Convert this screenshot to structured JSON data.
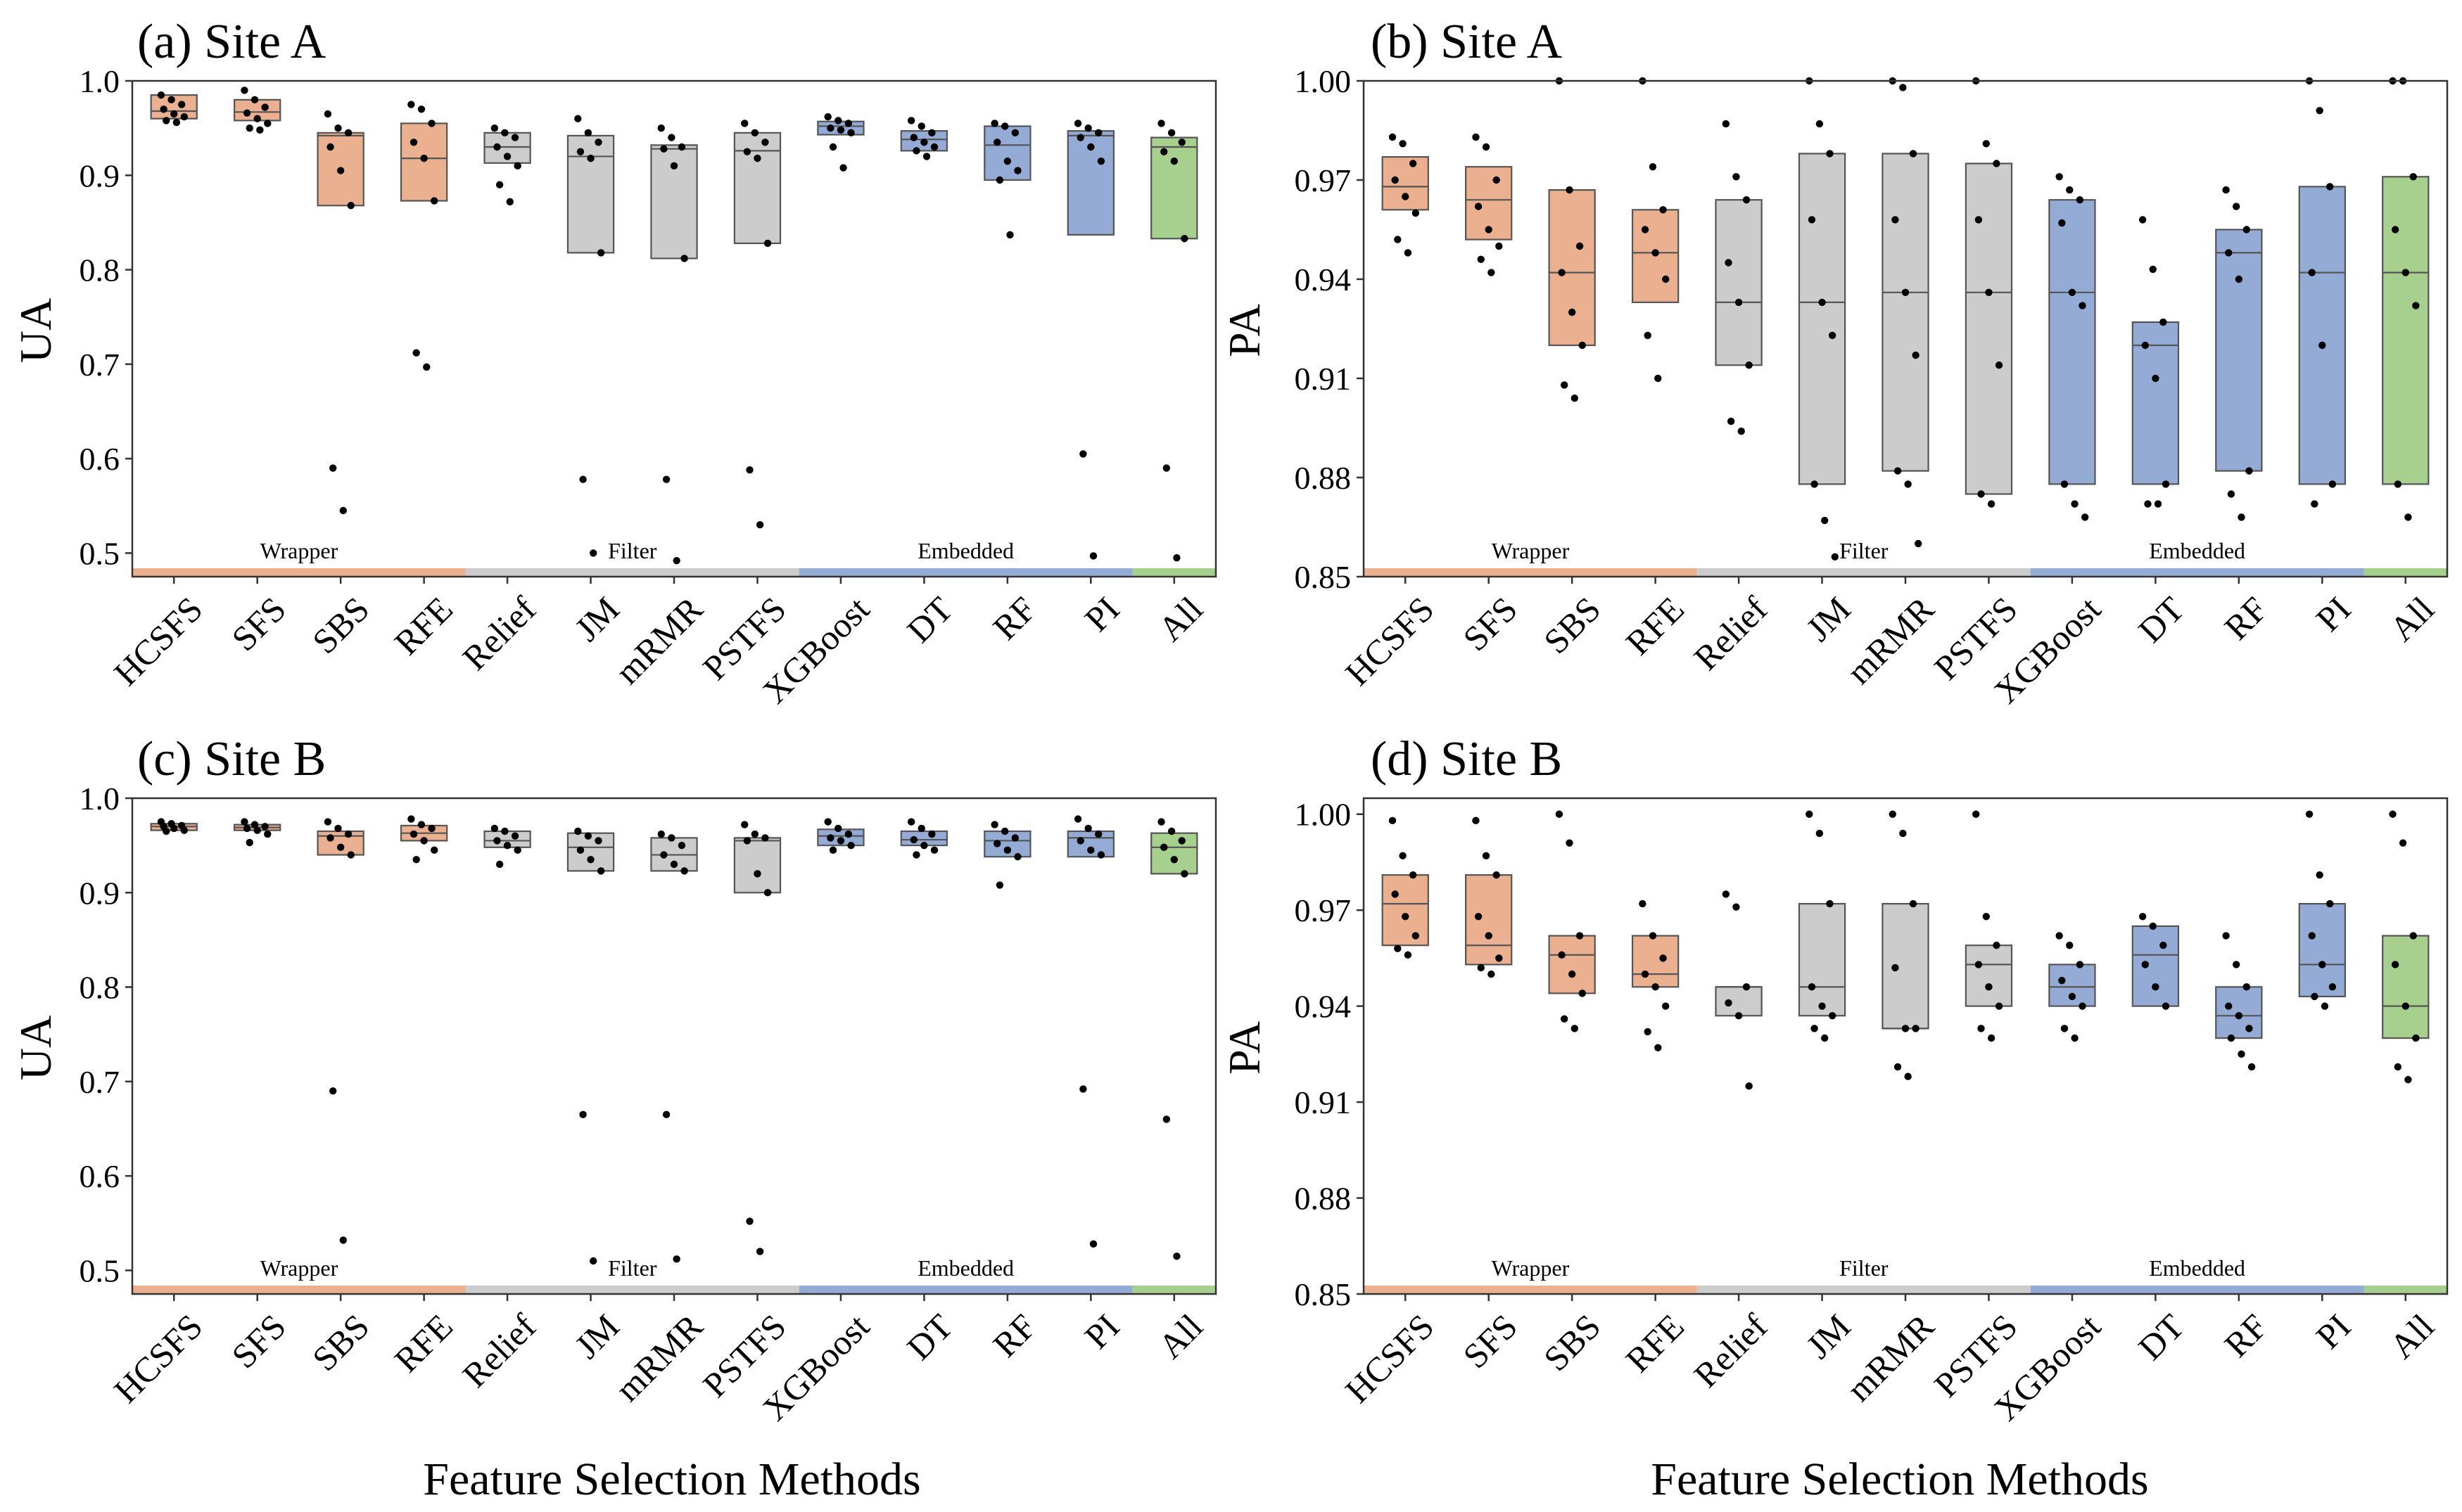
{
  "colors": {
    "Wrapper": "#eab08f",
    "Filter": "#cccccc",
    "Embedded": "#94abd6",
    "All": "#a7d08f"
  },
  "categories": [
    "HCSFS",
    "SFS",
    "SBS",
    "RFE",
    "Relief",
    "JM",
    "mRMR",
    "PSTFS",
    "XGBoost",
    "DT",
    "RF",
    "PI",
    "All"
  ],
  "category_groups": [
    "Wrapper",
    "Wrapper",
    "Wrapper",
    "Wrapper",
    "Filter",
    "Filter",
    "Filter",
    "Filter",
    "Embedded",
    "Embedded",
    "Embedded",
    "Embedded",
    "All"
  ],
  "group_labels": [
    "Wrapper",
    "Filter",
    "Embedded"
  ],
  "x_axis_label": "Feature Selection Methods",
  "chart_data": [
    {
      "type": "box",
      "panel": "a",
      "title": "(a) Site A",
      "ylabel": "UA",
      "ylim": [
        0.475,
        1.0
      ],
      "yticks": [
        "0.5",
        "0.6",
        "0.7",
        "0.8",
        "0.9",
        "1.0"
      ],
      "boxes": [
        {
          "q1": 0.96,
          "median": 0.968,
          "q3": 0.985,
          "points": [
            0.985,
            0.98,
            0.975,
            0.97,
            0.965,
            0.962,
            0.958,
            0.956
          ]
        },
        {
          "q1": 0.958,
          "median": 0.967,
          "q3": 0.98,
          "points": [
            0.99,
            0.98,
            0.972,
            0.966,
            0.96,
            0.955,
            0.95,
            0.948
          ]
        },
        {
          "q1": 0.868,
          "median": 0.942,
          "q3": 0.945,
          "points": [
            0.965,
            0.95,
            0.945,
            0.93,
            0.905,
            0.868,
            0.59,
            0.545
          ]
        },
        {
          "q1": 0.873,
          "median": 0.918,
          "q3": 0.955,
          "points": [
            0.975,
            0.97,
            0.955,
            0.935,
            0.918,
            0.873,
            0.712,
            0.697
          ]
        },
        {
          "q1": 0.913,
          "median": 0.93,
          "q3": 0.945,
          "points": [
            0.95,
            0.945,
            0.94,
            0.93,
            0.92,
            0.91,
            0.89,
            0.872
          ]
        },
        {
          "q1": 0.818,
          "median": 0.92,
          "q3": 0.942,
          "points": [
            0.96,
            0.945,
            0.935,
            0.925,
            0.918,
            0.818,
            0.578,
            0.5
          ]
        },
        {
          "q1": 0.812,
          "median": 0.928,
          "q3": 0.932,
          "points": [
            0.95,
            0.94,
            0.93,
            0.928,
            0.91,
            0.812,
            0.578,
            0.492
          ]
        },
        {
          "q1": 0.828,
          "median": 0.926,
          "q3": 0.945,
          "points": [
            0.955,
            0.945,
            0.935,
            0.925,
            0.918,
            0.828,
            0.588,
            0.53
          ]
        },
        {
          "q1": 0.943,
          "median": 0.952,
          "q3": 0.957,
          "points": [
            0.962,
            0.958,
            0.955,
            0.95,
            0.948,
            0.945,
            0.93,
            0.908
          ]
        },
        {
          "q1": 0.926,
          "median": 0.938,
          "q3": 0.947,
          "points": [
            0.958,
            0.952,
            0.945,
            0.94,
            0.935,
            0.93,
            0.926,
            0.92
          ]
        },
        {
          "q1": 0.895,
          "median": 0.932,
          "q3": 0.952,
          "points": [
            0.955,
            0.952,
            0.945,
            0.935,
            0.915,
            0.905,
            0.895,
            0.837
          ]
        },
        {
          "q1": 0.837,
          "median": 0.942,
          "q3": 0.947,
          "points": [
            0.955,
            0.95,
            0.945,
            0.94,
            0.93,
            0.915,
            0.605,
            0.497
          ]
        },
        {
          "q1": 0.833,
          "median": 0.93,
          "q3": 0.94,
          "points": [
            0.955,
            0.945,
            0.935,
            0.925,
            0.915,
            0.833,
            0.59,
            0.495
          ]
        }
      ]
    },
    {
      "type": "box",
      "panel": "b",
      "title": "(b) Site A",
      "ylabel": "PA",
      "ylim": [
        0.85,
        1.0
      ],
      "yticks": [
        "0.85",
        "0.88",
        "0.91",
        "0.94",
        "0.97",
        "1.00"
      ],
      "boxes": [
        {
          "q1": 0.961,
          "median": 0.968,
          "q3": 0.977,
          "points": [
            0.983,
            0.981,
            0.975,
            0.97,
            0.965,
            0.96,
            0.952,
            0.948
          ]
        },
        {
          "q1": 0.952,
          "median": 0.964,
          "q3": 0.974,
          "points": [
            0.983,
            0.98,
            0.97,
            0.962,
            0.955,
            0.95,
            0.946,
            0.942
          ]
        },
        {
          "q1": 0.92,
          "median": 0.942,
          "q3": 0.967,
          "points": [
            1.0,
            0.967,
            0.95,
            0.942,
            0.93,
            0.92,
            0.908,
            0.904
          ]
        },
        {
          "q1": 0.933,
          "median": 0.948,
          "q3": 0.961,
          "points": [
            1.0,
            0.974,
            0.961,
            0.955,
            0.948,
            0.94,
            0.923,
            0.91
          ]
        },
        {
          "q1": 0.914,
          "median": 0.933,
          "q3": 0.964,
          "points": [
            0.987,
            0.971,
            0.964,
            0.945,
            0.933,
            0.914,
            0.897,
            0.894
          ]
        },
        {
          "q1": 0.878,
          "median": 0.933,
          "q3": 0.978,
          "points": [
            1.0,
            0.987,
            0.978,
            0.958,
            0.933,
            0.923,
            0.878,
            0.867,
            0.856
          ]
        },
        {
          "q1": 0.882,
          "median": 0.936,
          "q3": 0.978,
          "points": [
            1.0,
            0.998,
            0.978,
            0.958,
            0.936,
            0.917,
            0.882,
            0.878,
            0.86
          ]
        },
        {
          "q1": 0.875,
          "median": 0.936,
          "q3": 0.975,
          "points": [
            1.0,
            0.981,
            0.975,
            0.958,
            0.936,
            0.914,
            0.875,
            0.872
          ]
        },
        {
          "q1": 0.878,
          "median": 0.936,
          "q3": 0.964,
          "points": [
            0.971,
            0.967,
            0.964,
            0.957,
            0.936,
            0.932,
            0.878,
            0.872,
            0.868
          ]
        },
        {
          "q1": 0.878,
          "median": 0.92,
          "q3": 0.927,
          "points": [
            0.958,
            0.943,
            0.927,
            0.92,
            0.91,
            0.878,
            0.872,
            0.872
          ]
        },
        {
          "q1": 0.882,
          "median": 0.948,
          "q3": 0.955,
          "points": [
            0.967,
            0.962,
            0.955,
            0.948,
            0.94,
            0.882,
            0.875,
            0.868
          ]
        },
        {
          "q1": 0.878,
          "median": 0.942,
          "q3": 0.968,
          "points": [
            1.0,
            0.991,
            0.968,
            0.942,
            0.92,
            0.878,
            0.872
          ]
        },
        {
          "q1": 0.878,
          "median": 0.942,
          "q3": 0.971,
          "points": [
            1.0,
            1.0,
            0.971,
            0.955,
            0.942,
            0.932,
            0.878,
            0.868
          ]
        }
      ]
    },
    {
      "type": "box",
      "panel": "c",
      "title": "(c) Site B",
      "ylabel": "UA",
      "ylim": [
        0.475,
        1.0
      ],
      "yticks": [
        "0.5",
        "0.6",
        "0.7",
        "0.8",
        "0.9",
        "1.0"
      ],
      "boxes": [
        {
          "q1": 0.966,
          "median": 0.97,
          "q3": 0.973,
          "points": [
            0.975,
            0.973,
            0.971,
            0.97,
            0.968,
            0.966,
            0.965
          ]
        },
        {
          "q1": 0.966,
          "median": 0.969,
          "q3": 0.972,
          "points": [
            0.975,
            0.972,
            0.97,
            0.968,
            0.966,
            0.962,
            0.953
          ]
        },
        {
          "q1": 0.94,
          "median": 0.96,
          "q3": 0.965,
          "points": [
            0.975,
            0.968,
            0.962,
            0.958,
            0.948,
            0.94,
            0.69,
            0.532
          ]
        },
        {
          "q1": 0.955,
          "median": 0.963,
          "q3": 0.971,
          "points": [
            0.978,
            0.972,
            0.968,
            0.962,
            0.955,
            0.945,
            0.935
          ]
        },
        {
          "q1": 0.948,
          "median": 0.955,
          "q3": 0.965,
          "points": [
            0.968,
            0.965,
            0.96,
            0.955,
            0.95,
            0.945,
            0.93
          ]
        },
        {
          "q1": 0.923,
          "median": 0.948,
          "q3": 0.963,
          "points": [
            0.965,
            0.96,
            0.955,
            0.945,
            0.935,
            0.923,
            0.665,
            0.51
          ]
        },
        {
          "q1": 0.923,
          "median": 0.94,
          "q3": 0.958,
          "points": [
            0.962,
            0.958,
            0.95,
            0.94,
            0.93,
            0.923,
            0.665,
            0.512
          ]
        },
        {
          "q1": 0.9,
          "median": 0.955,
          "q3": 0.958,
          "points": [
            0.972,
            0.962,
            0.958,
            0.955,
            0.92,
            0.9,
            0.552,
            0.52
          ]
        },
        {
          "q1": 0.95,
          "median": 0.96,
          "q3": 0.967,
          "points": [
            0.975,
            0.968,
            0.962,
            0.958,
            0.955,
            0.95,
            0.945
          ]
        },
        {
          "q1": 0.95,
          "median": 0.956,
          "q3": 0.965,
          "points": [
            0.975,
            0.968,
            0.962,
            0.956,
            0.95,
            0.945,
            0.94
          ]
        },
        {
          "q1": 0.938,
          "median": 0.955,
          "q3": 0.965,
          "points": [
            0.972,
            0.965,
            0.958,
            0.952,
            0.945,
            0.938,
            0.908
          ]
        },
        {
          "q1": 0.938,
          "median": 0.958,
          "q3": 0.965,
          "points": [
            0.978,
            0.968,
            0.962,
            0.955,
            0.945,
            0.94,
            0.692,
            0.528
          ]
        },
        {
          "q1": 0.92,
          "median": 0.948,
          "q3": 0.963,
          "points": [
            0.975,
            0.965,
            0.955,
            0.948,
            0.935,
            0.92,
            0.66,
            0.515
          ]
        }
      ]
    },
    {
      "type": "box",
      "panel": "d",
      "title": "(d) Site B",
      "ylabel": "PA",
      "ylim": [
        0.85,
        1.005
      ],
      "yticks": [
        "0.85",
        "0.88",
        "0.91",
        "0.94",
        "0.97",
        "1.00"
      ],
      "boxes": [
        {
          "q1": 0.959,
          "median": 0.972,
          "q3": 0.981,
          "points": [
            0.998,
            0.987,
            0.981,
            0.975,
            0.968,
            0.962,
            0.958,
            0.956
          ]
        },
        {
          "q1": 0.953,
          "median": 0.959,
          "q3": 0.981,
          "points": [
            0.998,
            0.987,
            0.981,
            0.968,
            0.962,
            0.955,
            0.952,
            0.95
          ]
        },
        {
          "q1": 0.944,
          "median": 0.956,
          "q3": 0.962,
          "points": [
            1.0,
            0.991,
            0.962,
            0.956,
            0.95,
            0.944,
            0.936,
            0.933
          ]
        },
        {
          "q1": 0.946,
          "median": 0.95,
          "q3": 0.962,
          "points": [
            0.972,
            0.962,
            0.955,
            0.95,
            0.946,
            0.94,
            0.932,
            0.927
          ]
        },
        {
          "q1": 0.937,
          "median": 0.946,
          "q3": 0.946,
          "points": [
            0.975,
            0.971,
            0.946,
            0.941,
            0.937,
            0.915
          ]
        },
        {
          "q1": 0.937,
          "median": 0.946,
          "q3": 0.972,
          "points": [
            1.0,
            0.994,
            0.972,
            0.946,
            0.94,
            0.937,
            0.933,
            0.93
          ]
        },
        {
          "q1": 0.933,
          "median": 0.933,
          "q3": 0.972,
          "points": [
            1.0,
            0.994,
            0.972,
            0.952,
            0.933,
            0.933,
            0.921,
            0.918
          ]
        },
        {
          "q1": 0.94,
          "median": 0.953,
          "q3": 0.959,
          "points": [
            1.0,
            0.968,
            0.959,
            0.953,
            0.946,
            0.94,
            0.933,
            0.93
          ]
        },
        {
          "q1": 0.94,
          "median": 0.946,
          "q3": 0.953,
          "points": [
            0.962,
            0.959,
            0.953,
            0.948,
            0.943,
            0.94,
            0.933,
            0.93
          ]
        },
        {
          "q1": 0.94,
          "median": 0.956,
          "q3": 0.965,
          "points": [
            0.968,
            0.965,
            0.959,
            0.953,
            0.946,
            0.94
          ]
        },
        {
          "q1": 0.93,
          "median": 0.937,
          "q3": 0.946,
          "points": [
            0.962,
            0.953,
            0.946,
            0.94,
            0.937,
            0.933,
            0.93,
            0.925,
            0.921
          ]
        },
        {
          "q1": 0.943,
          "median": 0.953,
          "q3": 0.972,
          "points": [
            1.0,
            0.981,
            0.972,
            0.962,
            0.953,
            0.946,
            0.943,
            0.94
          ]
        },
        {
          "q1": 0.93,
          "median": 0.94,
          "q3": 0.962,
          "points": [
            1.0,
            0.991,
            0.962,
            0.953,
            0.94,
            0.93,
            0.921,
            0.917
          ]
        }
      ]
    }
  ]
}
